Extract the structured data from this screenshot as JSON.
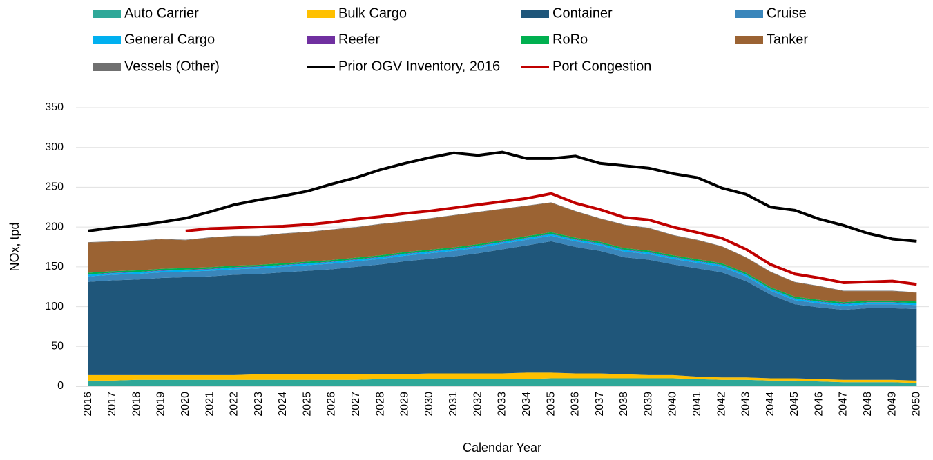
{
  "chart_data": {
    "type": "area",
    "stacked": true,
    "xlabel": "Calendar Year",
    "ylabel": "NOx, tpd",
    "categories": [
      "2016",
      "2017",
      "2018",
      "2019",
      "2020",
      "2021",
      "2022",
      "2023",
      "2024",
      "2025",
      "2026",
      "2027",
      "2028",
      "2029",
      "2030",
      "2031",
      "2032",
      "2033",
      "2034",
      "2035",
      "2036",
      "2037",
      "2038",
      "2039",
      "2040",
      "2041",
      "2042",
      "2043",
      "2044",
      "2045",
      "2046",
      "2047",
      "2048",
      "2049",
      "2050"
    ],
    "ylim": [
      0,
      350
    ],
    "yticks": [
      0,
      50,
      100,
      150,
      200,
      250,
      300,
      350
    ],
    "grid": true,
    "legend": "top",
    "series": [
      {
        "name": "Auto Carrier",
        "color": "#2fa899",
        "type": "area",
        "values": [
          7,
          7,
          8,
          8,
          8,
          8,
          8,
          8,
          8,
          8,
          8,
          8,
          9,
          9,
          9,
          9,
          9,
          9,
          9,
          10,
          10,
          10,
          10,
          10,
          10,
          9,
          8,
          8,
          7,
          7,
          6,
          5,
          5,
          5,
          4
        ]
      },
      {
        "name": "Bulk Cargo",
        "color": "#ffc000",
        "type": "area",
        "values": [
          7,
          7,
          6,
          6,
          6,
          6,
          6,
          7,
          7,
          7,
          7,
          7,
          6,
          6,
          7,
          7,
          7,
          7,
          8,
          7,
          6,
          6,
          5,
          4,
          4,
          3,
          3,
          3,
          3,
          3,
          3,
          3,
          3,
          3,
          3
        ]
      },
      {
        "name": "Container",
        "color": "#1f567a",
        "type": "area",
        "values": [
          117,
          119,
          120,
          122,
          123,
          124,
          126,
          126,
          128,
          130,
          132,
          135,
          138,
          142,
          144,
          147,
          151,
          156,
          160,
          165,
          159,
          154,
          147,
          145,
          139,
          136,
          132,
          121,
          105,
          93,
          90,
          88,
          90,
          90,
          90
        ]
      },
      {
        "name": "Cruise",
        "color": "#3a86bb",
        "type": "area",
        "values": [
          7,
          7,
          7,
          7,
          7,
          7,
          7,
          7,
          7,
          7,
          7,
          7,
          7,
          7,
          7,
          7,
          7,
          7,
          7,
          7,
          7,
          7,
          7,
          7,
          7,
          7,
          7,
          6,
          5,
          5,
          5,
          5,
          5,
          5,
          5
        ]
      },
      {
        "name": "General Cargo",
        "color": "#00b0f0",
        "type": "area",
        "values": [
          2,
          2,
          2,
          2,
          2,
          2,
          2,
          2,
          2,
          2,
          2,
          2,
          2,
          2,
          2,
          2,
          2,
          2,
          2,
          2,
          2,
          2,
          2,
          2,
          2,
          2,
          2,
          2,
          2,
          2,
          2,
          2,
          2,
          2,
          2
        ]
      },
      {
        "name": "Reefer",
        "color": "#7030a0",
        "type": "area",
        "values": [
          0.5,
          0.5,
          0.5,
          0.5,
          0.5,
          0.5,
          0.5,
          0.5,
          0.5,
          0.5,
          0.5,
          0.5,
          0.5,
          0.5,
          0.5,
          0.5,
          0.5,
          0.5,
          0.5,
          0.5,
          0.5,
          0.5,
          0.5,
          0.5,
          0.5,
          0.5,
          0.5,
          0.5,
          0.5,
          0.5,
          0.5,
          0.5,
          0.5,
          0.5,
          0.5
        ]
      },
      {
        "name": "RoRo",
        "color": "#00b050",
        "type": "area",
        "values": [
          2,
          2,
          2,
          2,
          2,
          2,
          2,
          2,
          2,
          2,
          2,
          2,
          2,
          2,
          2,
          2,
          2,
          2,
          2,
          2,
          2,
          2,
          2,
          2,
          2,
          2,
          2,
          2,
          2,
          2,
          2,
          2,
          2,
          2,
          2
        ]
      },
      {
        "name": "Tanker",
        "color": "#9b6333",
        "type": "area",
        "values": [
          38,
          37,
          37,
          37,
          35,
          37,
          37,
          36,
          37,
          37,
          38,
          38,
          39,
          38,
          39,
          40,
          40,
          39,
          38,
          37,
          33,
          29,
          29,
          28,
          25,
          24,
          21,
          19,
          19,
          18,
          17,
          14,
          12,
          12,
          11
        ]
      },
      {
        "name": "Vessels (Other)",
        "color": "#707070",
        "type": "area",
        "values": [
          0.5,
          0.5,
          0.5,
          0.5,
          0.5,
          0.5,
          0.5,
          0.5,
          0.5,
          0.5,
          0.5,
          0.5,
          0.5,
          0.5,
          0.5,
          0.5,
          0.5,
          0.5,
          0.5,
          0.5,
          0.5,
          0.5,
          0.5,
          0.5,
          0.5,
          0.5,
          0.5,
          0.5,
          0.5,
          0.5,
          0.5,
          0.5,
          0.5,
          0.5,
          0.5
        ]
      },
      {
        "name": "Prior OGV Inventory, 2016",
        "color": "#000000",
        "type": "line",
        "values": [
          195,
          199,
          202,
          206,
          211,
          219,
          228,
          234,
          239,
          245,
          254,
          262,
          272,
          280,
          287,
          293,
          290,
          294,
          286,
          286,
          289,
          280,
          277,
          274,
          267,
          262,
          249,
          241,
          225,
          221,
          210,
          202,
          192,
          185,
          182
        ]
      },
      {
        "name": "Port Congestion",
        "color": "#c00000",
        "type": "line",
        "values": [
          null,
          null,
          null,
          null,
          195,
          198,
          199,
          200,
          201,
          203,
          206,
          210,
          213,
          217,
          220,
          224,
          228,
          232,
          236,
          242,
          230,
          222,
          212,
          209,
          200,
          193,
          186,
          172,
          153,
          141,
          136,
          130,
          131,
          132,
          128
        ]
      }
    ]
  }
}
